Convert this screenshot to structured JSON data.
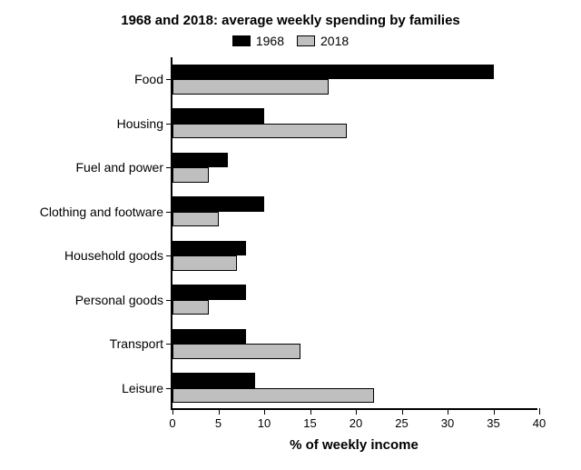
{
  "chart": {
    "type": "bar-grouped-horizontal",
    "title": "1968 and 2018: average weekly spending by families",
    "title_fontsize": 15,
    "xlabel": "% of weekly income",
    "xlabel_fontsize": 15,
    "xlim": [
      0,
      40
    ],
    "xtick_step": 5,
    "xticks": [
      0,
      5,
      10,
      15,
      20,
      25,
      30,
      35,
      40
    ],
    "categories": [
      "Food",
      "Housing",
      "Fuel and power",
      "Clothing and footware",
      "Household goods",
      "Personal goods",
      "Transport",
      "Leisure"
    ],
    "series": [
      {
        "name": "1968",
        "color": "#000000",
        "values": [
          35,
          10,
          6,
          10,
          8,
          8,
          8,
          9
        ]
      },
      {
        "name": "2018",
        "color": "#bfbfbf",
        "values": [
          17,
          19,
          4,
          5,
          7,
          4,
          14,
          22
        ]
      }
    ],
    "bar_height_ratio": 0.34,
    "group_gap_ratio": 0.32,
    "background_color": "#ffffff",
    "axis_color": "#000000",
    "label_fontsize": 14,
    "tick_fontsize": 13
  }
}
